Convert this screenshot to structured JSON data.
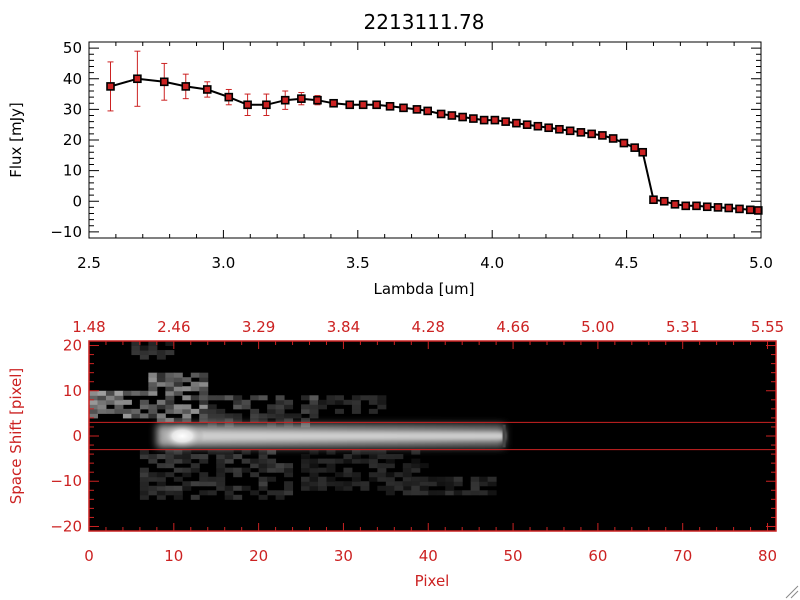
{
  "chart_data": [
    {
      "type": "line",
      "title": "2213111.78",
      "xlabel": "Lambda [um]",
      "ylabel": "Flux [mJy]",
      "xlim": [
        2.5,
        5.0
      ],
      "ylim": [
        -12,
        52
      ],
      "x_ticks": [
        2.5,
        3.0,
        3.5,
        4.0,
        4.5,
        5.0
      ],
      "x_tick_labels": [
        "2.5",
        "3.0",
        "3.5",
        "4.0",
        "4.5",
        "5.0"
      ],
      "y_ticks": [
        -10,
        0,
        10,
        20,
        30,
        40,
        50
      ],
      "y_tick_labels": [
        "−10",
        "0",
        "10",
        "20",
        "30",
        "40",
        "50"
      ],
      "grid": false,
      "line_color": "#000000",
      "marker_color": "#cc2222",
      "errorbar_color": "#cc2222",
      "x": [
        2.58,
        2.68,
        2.78,
        2.86,
        2.94,
        3.02,
        3.09,
        3.16,
        3.23,
        3.29,
        3.35,
        3.41,
        3.47,
        3.52,
        3.57,
        3.62,
        3.67,
        3.72,
        3.76,
        3.81,
        3.85,
        3.89,
        3.93,
        3.97,
        4.01,
        4.05,
        4.09,
        4.13,
        4.17,
        4.21,
        4.25,
        4.29,
        4.33,
        4.37,
        4.41,
        4.45,
        4.49,
        4.53,
        4.56,
        4.6,
        4.64,
        4.68,
        4.72,
        4.76,
        4.8,
        4.84,
        4.88,
        4.92,
        4.96,
        4.99
      ],
      "y": [
        37.5,
        40.0,
        39.0,
        37.5,
        36.5,
        34.0,
        31.5,
        31.5,
        33.0,
        33.5,
        33.0,
        32.0,
        31.5,
        31.5,
        31.5,
        31.0,
        30.5,
        30.0,
        29.5,
        28.5,
        28.0,
        27.5,
        27.0,
        26.5,
        26.5,
        26.0,
        25.5,
        25.0,
        24.5,
        24.0,
        23.5,
        23.0,
        22.5,
        22.0,
        21.5,
        20.5,
        19.0,
        17.5,
        16.0,
        0.5,
        0.0,
        -1.0,
        -1.5,
        -1.5,
        -1.8,
        -2.0,
        -2.2,
        -2.5,
        -2.8,
        -3.0
      ],
      "yerr": [
        8.0,
        9.0,
        6.0,
        4.0,
        2.5,
        2.5,
        3.5,
        3.5,
        3.0,
        2.0,
        1.5,
        1.0,
        1.0,
        1.0,
        1.0,
        1.0,
        0.8,
        0.8,
        0.8,
        0.8,
        0.8,
        0.8,
        0.8,
        0.8,
        0.8,
        0.8,
        0.8,
        0.8,
        0.8,
        0.8,
        0.8,
        0.8,
        0.8,
        0.8,
        0.8,
        0.8,
        0.8,
        0.8,
        0.8,
        0.8,
        0.6,
        0.6,
        0.6,
        0.6,
        0.6,
        0.6,
        0.6,
        0.6,
        0.6,
        0.6
      ]
    },
    {
      "type": "heatmap",
      "xlabel": "Pixel",
      "ylabel": "Space Shift [pixel]",
      "xlim": [
        0,
        81
      ],
      "ylim": [
        -21,
        21
      ],
      "x_ticks": [
        0,
        10,
        20,
        30,
        40,
        50,
        60,
        70,
        80
      ],
      "x_tick_labels": [
        "0",
        "10",
        "20",
        "30",
        "40",
        "50",
        "60",
        "70",
        "80"
      ],
      "y_ticks": [
        -20,
        -10,
        0,
        10,
        20
      ],
      "y_tick_labels": [
        "−20",
        "−10",
        "0",
        "10",
        "20"
      ],
      "top_tick_labels": [
        "1.48",
        "2.46",
        "3.29",
        "3.84",
        "4.28",
        "4.66",
        "5.00",
        "5.31",
        "5.55"
      ],
      "extraction_aperture": [
        -3,
        3
      ],
      "aperture_color": "#cc2222",
      "axis_color": "#cc2222",
      "colormap": "grayscale",
      "spectral_trace": {
        "x_start": 8,
        "x_end": 49,
        "y_center": 0,
        "peak_x": 11
      }
    }
  ]
}
